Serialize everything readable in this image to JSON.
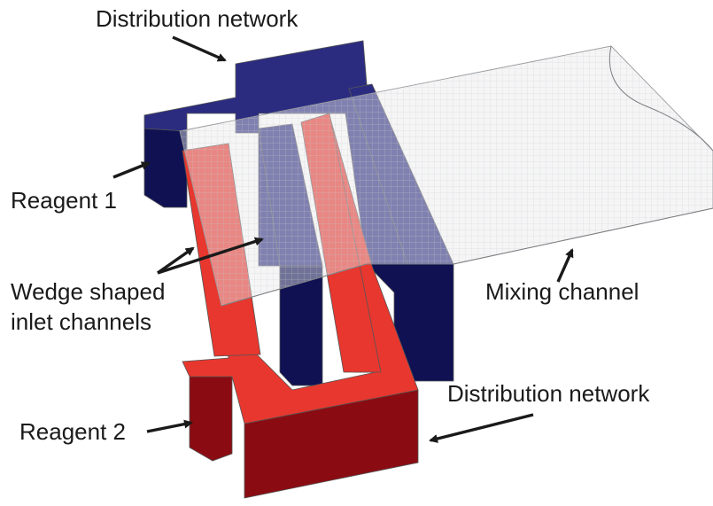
{
  "labels": {
    "distribution_top": "Distribution network",
    "reagent1": "Reagent 1",
    "wedge_line1": "Wedge shaped",
    "wedge_line2": "inlet channels",
    "mixing": "Mixing channel",
    "reagent2": "Reagent 2",
    "distribution_bottom": "Distribution network"
  },
  "colors": {
    "blue_top": "#2b2c80",
    "blue_side": "#0f1152",
    "red_top": "#e8372e",
    "red_side": "#8a0c12",
    "mixing_fill": "#e8e9ea",
    "arrow": "#1a1a1a"
  }
}
